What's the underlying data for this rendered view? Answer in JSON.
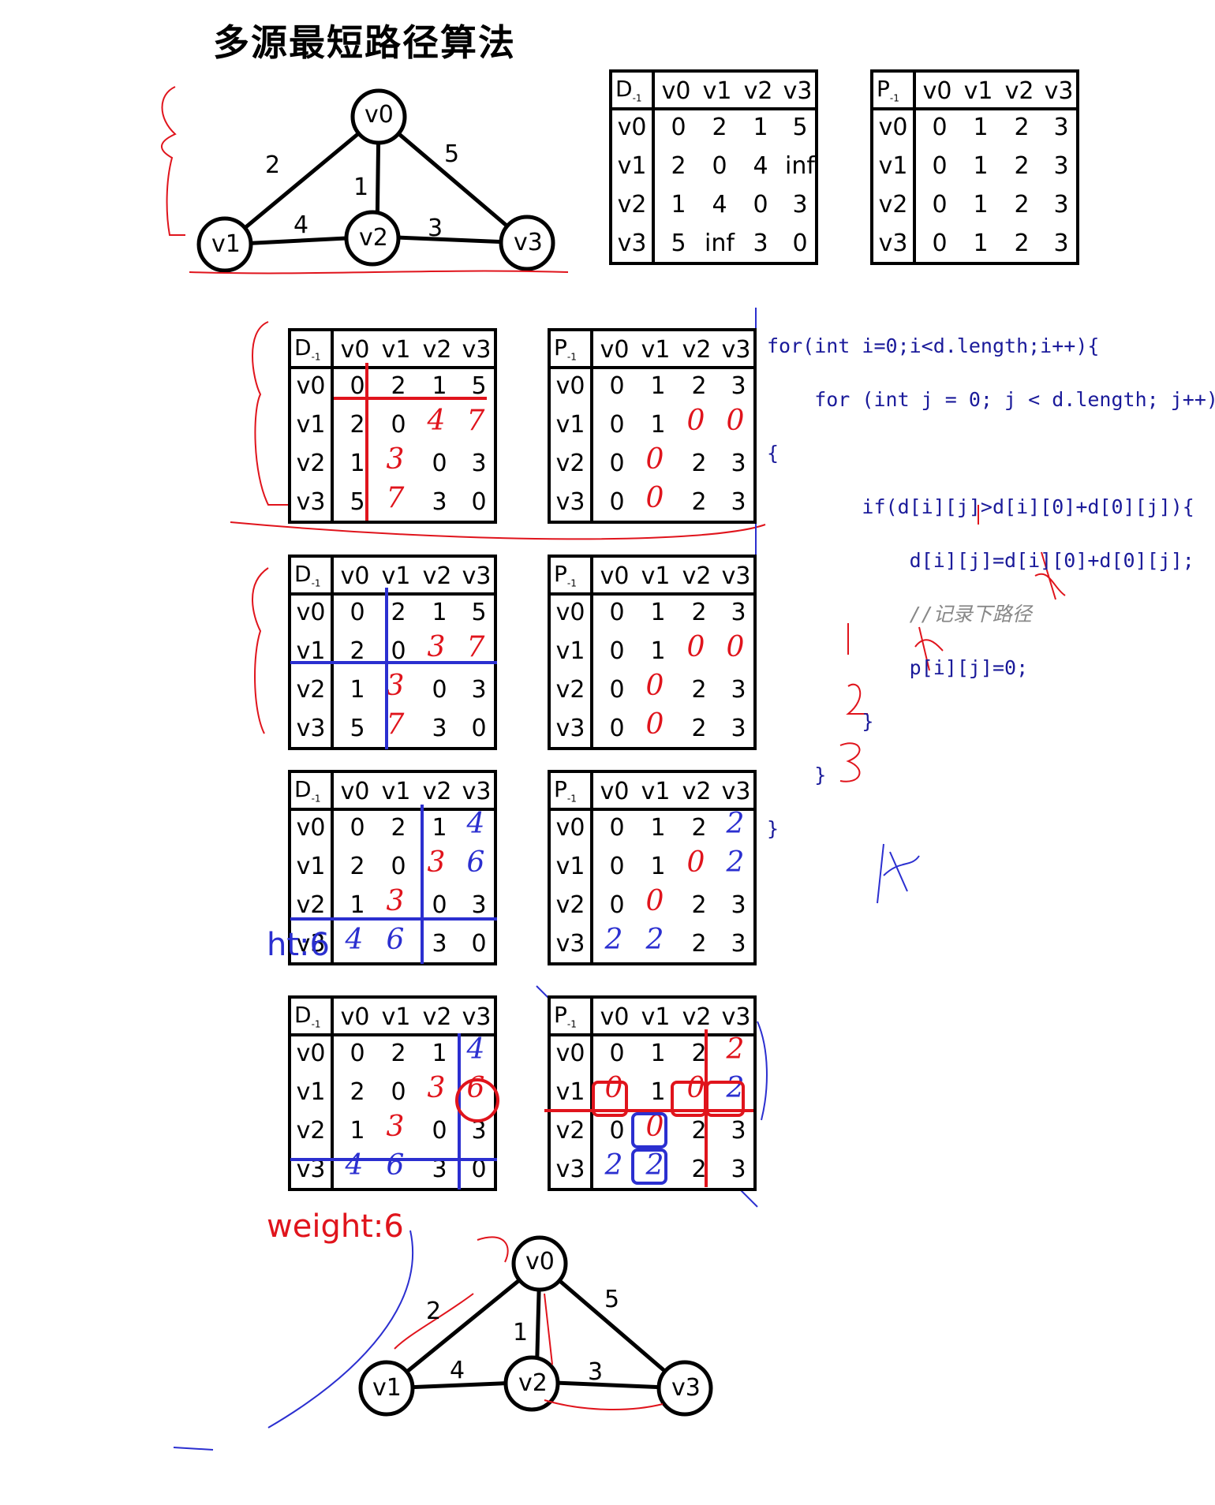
{
  "title": "多源最短路径算法",
  "graph": {
    "nodes": [
      "v0",
      "v1",
      "v2",
      "v3"
    ],
    "edges": [
      {
        "from": "v0",
        "to": "v1",
        "weight": "2"
      },
      {
        "from": "v0",
        "to": "v2",
        "weight": "1"
      },
      {
        "from": "v0",
        "to": "v3",
        "weight": "5"
      },
      {
        "from": "v1",
        "to": "v2",
        "weight": "4"
      },
      {
        "from": "v2",
        "to": "v3",
        "weight": "3"
      }
    ]
  },
  "matrix_labels": {
    "d_corner": "D",
    "p_corner": "P",
    "corner_sub": "-1",
    "headers": [
      "v0",
      "v1",
      "v2",
      "v3"
    ]
  },
  "d_tables": [
    [
      [
        "0",
        "2",
        "1",
        "5"
      ],
      [
        "2",
        "0",
        "4",
        "inf"
      ],
      [
        "1",
        "4",
        "0",
        "3"
      ],
      [
        "5",
        "inf",
        "3",
        "0"
      ]
    ],
    [
      [
        "0",
        "2",
        "1",
        "5"
      ],
      [
        "2",
        "0",
        "",
        ""
      ],
      [
        "1",
        "",
        "0",
        "3"
      ],
      [
        "5",
        "",
        "3",
        "0"
      ]
    ],
    [
      [
        "0",
        "2",
        "1",
        "5"
      ],
      [
        "2",
        "0",
        "",
        ""
      ],
      [
        "1",
        "",
        "0",
        "3"
      ],
      [
        "5",
        "",
        "3",
        "0"
      ]
    ],
    [
      [
        "0",
        "2",
        "1",
        ""
      ],
      [
        "2",
        "0",
        "",
        ""
      ],
      [
        "1",
        "",
        "0",
        "3"
      ],
      [
        "",
        "",
        "3",
        "0"
      ]
    ],
    [
      [
        "0",
        "2",
        "1",
        ""
      ],
      [
        "2",
        "0",
        "",
        ""
      ],
      [
        "1",
        "",
        "0",
        "3"
      ],
      [
        "",
        "",
        "3",
        "0"
      ]
    ]
  ],
  "p_tables": [
    [
      [
        "0",
        "1",
        "2",
        "3"
      ],
      [
        "0",
        "1",
        "2",
        "3"
      ],
      [
        "0",
        "1",
        "2",
        "3"
      ],
      [
        "0",
        "1",
        "2",
        "3"
      ]
    ],
    [
      [
        "0",
        "1",
        "2",
        "3"
      ],
      [
        "0",
        "1",
        "",
        ""
      ],
      [
        "0",
        "",
        "2",
        "3"
      ],
      [
        "0",
        "",
        "2",
        "3"
      ]
    ],
    [
      [
        "0",
        "1",
        "2",
        "3"
      ],
      [
        "0",
        "1",
        "",
        ""
      ],
      [
        "0",
        "",
        "2",
        "3"
      ],
      [
        "0",
        "",
        "2",
        "3"
      ]
    ],
    [
      [
        "0",
        "1",
        "2",
        ""
      ],
      [
        "0",
        "1",
        "",
        ""
      ],
      [
        "0",
        "",
        "2",
        "3"
      ],
      [
        "",
        "",
        "2",
        "3"
      ]
    ],
    [
      [
        "0",
        "1",
        "2",
        ""
      ],
      [
        "",
        "1",
        "",
        ""
      ],
      [
        "0",
        "",
        "2",
        "3"
      ],
      [
        "",
        "",
        "2",
        "3"
      ]
    ]
  ],
  "handwritten": {
    "t1": {
      "v1v2": "4",
      "v1v3": "7",
      "v2v1": "3",
      "v2v3": "3",
      "v3v1": "7",
      "p_v1v2": "0",
      "p_v1v3": "0",
      "p_v2v1": "0",
      "p_v3v1": "0"
    },
    "t2": {
      "v1v2": "3",
      "v1v3": "7",
      "v2v1": "3",
      "v3v1": "7",
      "p_v1v2": "0",
      "p_v1v3": "0",
      "p_v2v1": "0",
      "p_v3v1": "0"
    },
    "t3": {
      "v0v3": "4",
      "v1v2": "3",
      "v1v3": "6",
      "v2v1": "3",
      "v3v0": "4",
      "v3v1": "6",
      "p_v0v3": "2",
      "p_v1v2": "0",
      "p_v1v3": "2",
      "p_v2v1": "0",
      "p_v3v0": "2",
      "p_v3v1": "2"
    },
    "t4": {
      "v0v3": "4",
      "v1v2": "3",
      "v1v3": "6",
      "v2v1": "3",
      "v3v0": "4",
      "v3v1": "6",
      "p_v0v3": "2",
      "p_v1v0": "0",
      "p_v1v2": "0",
      "p_v1v3": "2",
      "p_v2v1": "0",
      "p_v3v0": "2",
      "p_v3v1": "2"
    }
  },
  "code": {
    "line1": "for(int i=0;i<d.length;i++){",
    "line2": "    for (int j = 0; j < d.length; j++)",
    "line3": "{",
    "line4": "        if(d[i][j]>d[i][0]+d[0][j]){",
    "line5": "            d[i][j]=d[i][0]+d[0][j];",
    "line6": "            //记录下路径",
    "line7": "            p[i][j]=0;",
    "line8": "        }",
    "line9": "    }",
    "line10": "}"
  },
  "notes": {
    "ht": "ht:6",
    "weight": "weight:6",
    "k_marks": [
      "K",
      "K",
      "K"
    ],
    "nums": [
      "1",
      "2",
      "3"
    ]
  },
  "colors": {
    "red": "#e0141c",
    "blue": "#2b2fd0",
    "black": "#000000"
  }
}
